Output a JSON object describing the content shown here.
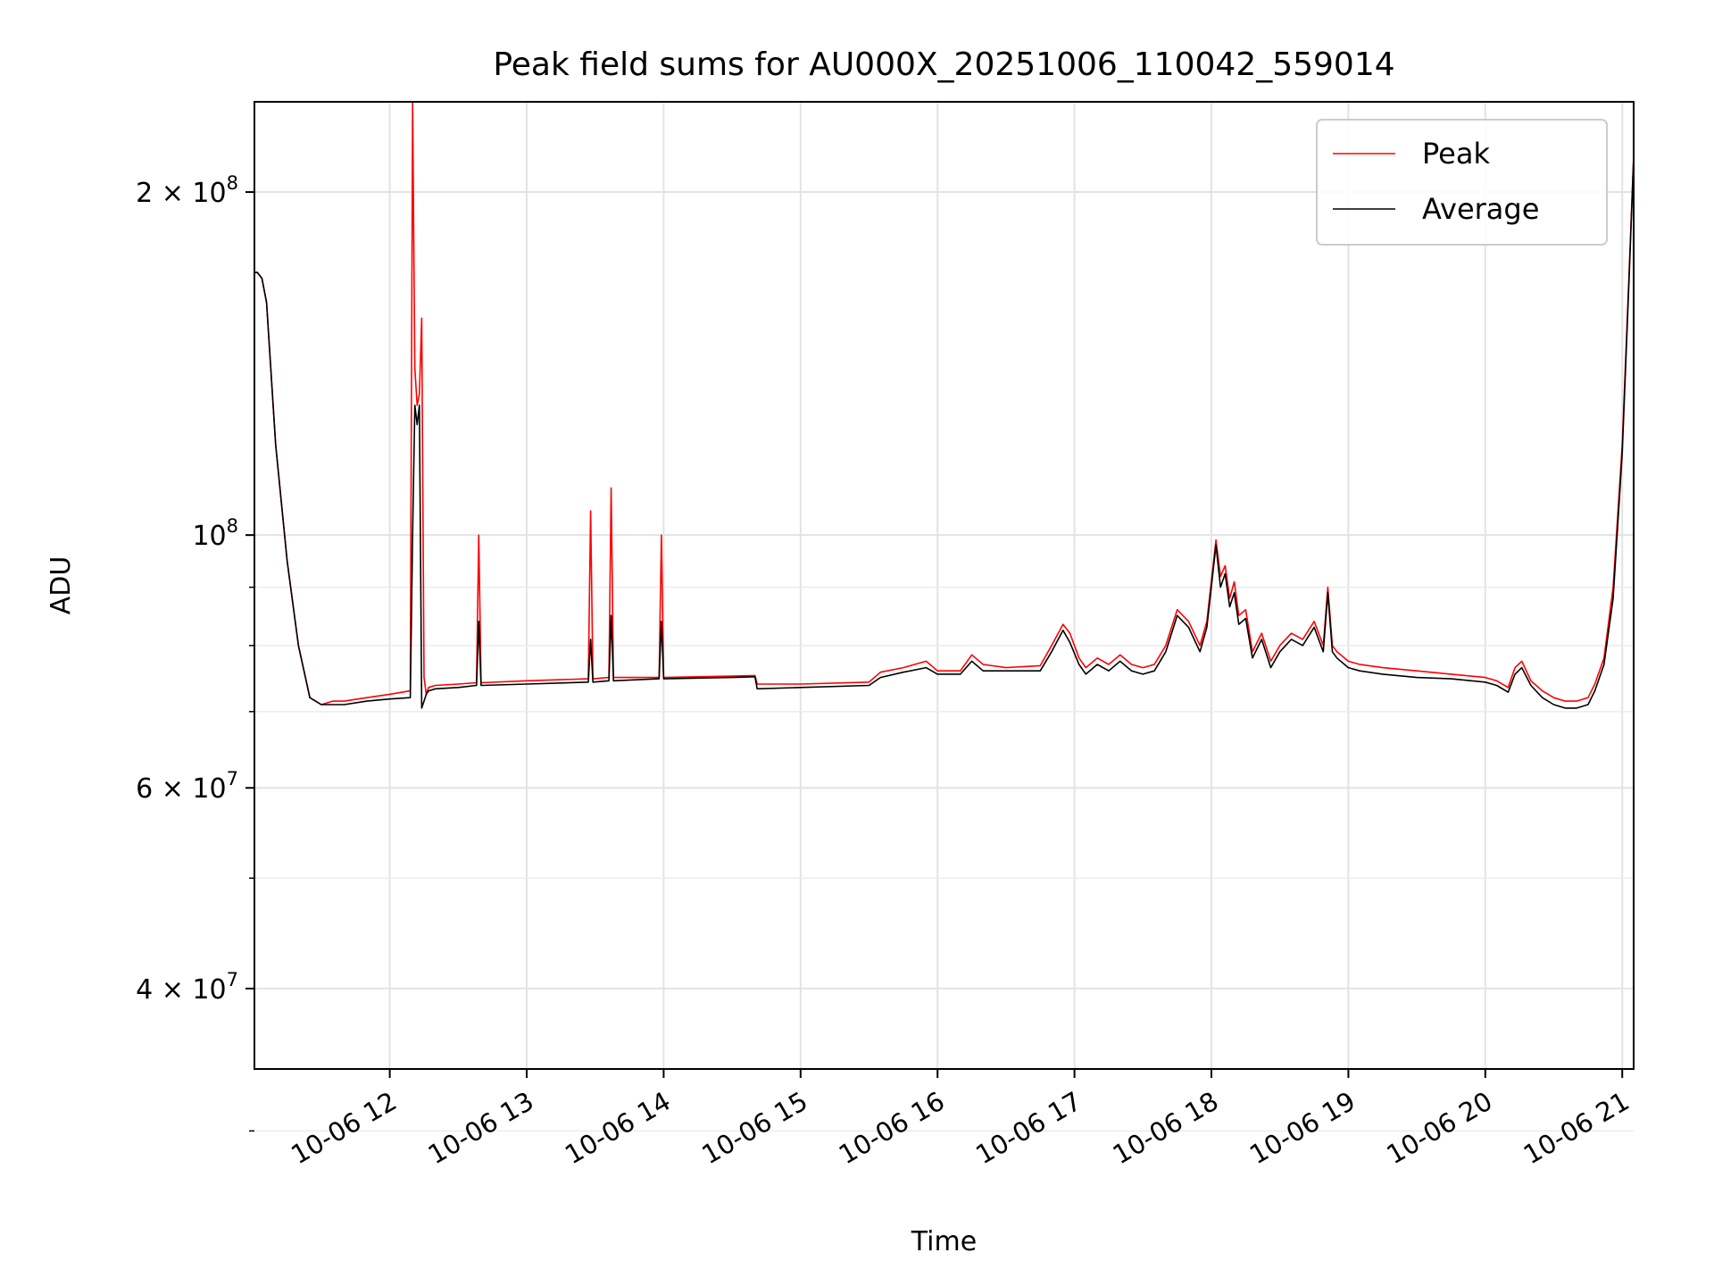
{
  "chart_data": {
    "type": "line",
    "title": "Peak field sums for AU000X_20251006_110042_559014",
    "xlabel": "Time",
    "ylabel": "ADU",
    "y_scale": "log",
    "xlim": [
      "2025-10-06 11:00:42",
      "2025-10-06 21:05:00"
    ],
    "ylim": [
      34000000,
      240000000
    ],
    "grid": true,
    "legend_position": "top-right",
    "x_ticks": [
      {
        "value": "2025-10-06 12:00",
        "label": "10-06 12"
      },
      {
        "value": "2025-10-06 13:00",
        "label": "10-06 13"
      },
      {
        "value": "2025-10-06 14:00",
        "label": "10-06 14"
      },
      {
        "value": "2025-10-06 15:00",
        "label": "10-06 15"
      },
      {
        "value": "2025-10-06 16:00",
        "label": "10-06 16"
      },
      {
        "value": "2025-10-06 17:00",
        "label": "10-06 17"
      },
      {
        "value": "2025-10-06 18:00",
        "label": "10-06 18"
      },
      {
        "value": "2025-10-06 19:00",
        "label": "10-06 19"
      },
      {
        "value": "2025-10-06 20:00",
        "label": "10-06 20"
      },
      {
        "value": "2025-10-06 21:00",
        "label": "10-06 21"
      }
    ],
    "y_ticks": [
      {
        "value": 40000000,
        "mantissa": "4",
        "base": "10",
        "exp": "7"
      },
      {
        "value": 60000000,
        "mantissa": "6",
        "base": "10",
        "exp": "7"
      },
      {
        "value": 100000000,
        "mantissa": "",
        "base": "10",
        "exp": "8"
      },
      {
        "value": 200000000,
        "mantissa": "2",
        "base": "10",
        "exp": "8"
      }
    ],
    "y_minor_ticks": [
      30000000,
      50000000,
      70000000,
      80000000,
      90000000
    ],
    "series": [
      {
        "name": "Peak",
        "color": "#ff0000",
        "x": [
          "2025-10-06 11:00:42",
          "2025-10-06 11:02",
          "2025-10-06 11:04",
          "2025-10-06 11:06",
          "2025-10-06 11:10",
          "2025-10-06 11:15",
          "2025-10-06 11:20",
          "2025-10-06 11:25",
          "2025-10-06 11:30",
          "2025-10-06 11:35",
          "2025-10-06 11:40",
          "2025-10-06 11:50",
          "2025-10-06 12:00",
          "2025-10-06 12:09",
          "2025-10-06 12:10",
          "2025-10-06 12:11",
          "2025-10-06 12:12",
          "2025-10-06 12:13",
          "2025-10-06 12:14",
          "2025-10-06 12:15",
          "2025-10-06 12:16",
          "2025-10-06 12:17",
          "2025-10-06 12:20",
          "2025-10-06 12:30",
          "2025-10-06 12:38",
          "2025-10-06 12:39",
          "2025-10-06 12:40",
          "2025-10-06 13:00",
          "2025-10-06 13:27",
          "2025-10-06 13:28",
          "2025-10-06 13:29",
          "2025-10-06 13:36",
          "2025-10-06 13:37",
          "2025-10-06 13:38",
          "2025-10-06 13:58",
          "2025-10-06 13:59",
          "2025-10-06 14:00",
          "2025-10-06 14:30",
          "2025-10-06 14:40",
          "2025-10-06 14:41",
          "2025-10-06 15:00",
          "2025-10-06 15:30",
          "2025-10-06 15:35",
          "2025-10-06 15:45",
          "2025-10-06 15:55",
          "2025-10-06 16:00",
          "2025-10-06 16:10",
          "2025-10-06 16:15",
          "2025-10-06 16:20",
          "2025-10-06 16:30",
          "2025-10-06 16:45",
          "2025-10-06 16:50",
          "2025-10-06 16:55",
          "2025-10-06 16:58",
          "2025-10-06 17:02",
          "2025-10-06 17:05",
          "2025-10-06 17:10",
          "2025-10-06 17:15",
          "2025-10-06 17:20",
          "2025-10-06 17:25",
          "2025-10-06 17:30",
          "2025-10-06 17:35",
          "2025-10-06 17:40",
          "2025-10-06 17:45",
          "2025-10-06 17:50",
          "2025-10-06 17:55",
          "2025-10-06 17:58",
          "2025-10-06 18:02",
          "2025-10-06 18:04",
          "2025-10-06 18:06",
          "2025-10-06 18:08",
          "2025-10-06 18:10",
          "2025-10-06 18:12",
          "2025-10-06 18:15",
          "2025-10-06 18:18",
          "2025-10-06 18:22",
          "2025-10-06 18:26",
          "2025-10-06 18:30",
          "2025-10-06 18:35",
          "2025-10-06 18:40",
          "2025-10-06 18:45",
          "2025-10-06 18:49",
          "2025-10-06 18:51",
          "2025-10-06 18:53",
          "2025-10-06 18:55",
          "2025-10-06 19:00",
          "2025-10-06 19:05",
          "2025-10-06 19:15",
          "2025-10-06 19:30",
          "2025-10-06 19:45",
          "2025-10-06 20:00",
          "2025-10-06 20:05",
          "2025-10-06 20:10",
          "2025-10-06 20:13",
          "2025-10-06 20:16",
          "2025-10-06 20:20",
          "2025-10-06 20:25",
          "2025-10-06 20:30",
          "2025-10-06 20:35",
          "2025-10-06 20:40",
          "2025-10-06 20:45",
          "2025-10-06 20:48",
          "2025-10-06 20:52",
          "2025-10-06 20:56",
          "2025-10-06 21:00",
          "2025-10-06 21:03",
          "2025-10-06 21:05"
        ],
        "values": [
          170000000,
          170000000,
          168000000,
          160000000,
          120000000,
          95000000,
          80000000,
          72000000,
          71000000,
          71500000,
          71500000,
          72000000,
          72500000,
          73000000,
          240000000,
          140000000,
          130000000,
          133000000,
          155000000,
          75000000,
          72500000,
          73500000,
          73800000,
          74000000,
          74200000,
          100000000,
          74200000,
          74500000,
          74800000,
          105000000,
          74800000,
          75000000,
          110000000,
          75000000,
          75000000,
          100000000,
          75000000,
          75200000,
          75300000,
          74000000,
          74000000,
          74300000,
          75800000,
          76500000,
          77500000,
          76000000,
          76000000,
          78500000,
          77000000,
          76500000,
          76800000,
          80000000,
          83500000,
          82000000,
          78000000,
          76500000,
          78000000,
          77000000,
          78500000,
          77000000,
          76500000,
          77000000,
          80000000,
          86000000,
          84000000,
          80000000,
          84000000,
          99000000,
          92000000,
          94000000,
          88000000,
          91000000,
          85000000,
          86000000,
          79000000,
          82000000,
          77500000,
          80000000,
          82000000,
          81000000,
          84000000,
          80000000,
          90000000,
          80000000,
          79000000,
          77500000,
          77000000,
          76500000,
          76000000,
          75500000,
          75000000,
          74500000,
          73500000,
          76500000,
          77500000,
          74500000,
          73000000,
          72000000,
          71500000,
          71500000,
          72000000,
          74000000,
          78000000,
          90000000,
          120000000,
          170000000,
          215000000
        ]
      },
      {
        "name": "Average",
        "color": "#000000",
        "x": [
          "2025-10-06 11:00:42",
          "2025-10-06 11:02",
          "2025-10-06 11:04",
          "2025-10-06 11:06",
          "2025-10-06 11:10",
          "2025-10-06 11:15",
          "2025-10-06 11:20",
          "2025-10-06 11:25",
          "2025-10-06 11:30",
          "2025-10-06 11:35",
          "2025-10-06 11:40",
          "2025-10-06 11:50",
          "2025-10-06 12:00",
          "2025-10-06 12:09",
          "2025-10-06 12:10",
          "2025-10-06 12:11",
          "2025-10-06 12:12",
          "2025-10-06 12:13",
          "2025-10-06 12:14",
          "2025-10-06 12:15",
          "2025-10-06 12:16",
          "2025-10-06 12:17",
          "2025-10-06 12:20",
          "2025-10-06 12:30",
          "2025-10-06 12:38",
          "2025-10-06 12:39",
          "2025-10-06 12:40",
          "2025-10-06 13:00",
          "2025-10-06 13:27",
          "2025-10-06 13:28",
          "2025-10-06 13:29",
          "2025-10-06 13:36",
          "2025-10-06 13:37",
          "2025-10-06 13:38",
          "2025-10-06 13:58",
          "2025-10-06 13:59",
          "2025-10-06 14:00",
          "2025-10-06 14:30",
          "2025-10-06 14:40",
          "2025-10-06 14:41",
          "2025-10-06 15:00",
          "2025-10-06 15:30",
          "2025-10-06 15:35",
          "2025-10-06 15:45",
          "2025-10-06 15:55",
          "2025-10-06 16:00",
          "2025-10-06 16:10",
          "2025-10-06 16:15",
          "2025-10-06 16:20",
          "2025-10-06 16:30",
          "2025-10-06 16:45",
          "2025-10-06 16:50",
          "2025-10-06 16:55",
          "2025-10-06 16:58",
          "2025-10-06 17:02",
          "2025-10-06 17:05",
          "2025-10-06 17:10",
          "2025-10-06 17:15",
          "2025-10-06 17:20",
          "2025-10-06 17:25",
          "2025-10-06 17:30",
          "2025-10-06 17:35",
          "2025-10-06 17:40",
          "2025-10-06 17:45",
          "2025-10-06 17:50",
          "2025-10-06 17:55",
          "2025-10-06 17:58",
          "2025-10-06 18:02",
          "2025-10-06 18:04",
          "2025-10-06 18:06",
          "2025-10-06 18:08",
          "2025-10-06 18:10",
          "2025-10-06 18:12",
          "2025-10-06 18:15",
          "2025-10-06 18:18",
          "2025-10-06 18:22",
          "2025-10-06 18:26",
          "2025-10-06 18:30",
          "2025-10-06 18:35",
          "2025-10-06 18:40",
          "2025-10-06 18:45",
          "2025-10-06 18:49",
          "2025-10-06 18:51",
          "2025-10-06 18:53",
          "2025-10-06 18:55",
          "2025-10-06 19:00",
          "2025-10-06 19:05",
          "2025-10-06 19:15",
          "2025-10-06 19:30",
          "2025-10-06 19:45",
          "2025-10-06 20:00",
          "2025-10-06 20:05",
          "2025-10-06 20:10",
          "2025-10-06 20:13",
          "2025-10-06 20:16",
          "2025-10-06 20:20",
          "2025-10-06 20:25",
          "2025-10-06 20:30",
          "2025-10-06 20:35",
          "2025-10-06 20:40",
          "2025-10-06 20:45",
          "2025-10-06 20:48",
          "2025-10-06 20:52",
          "2025-10-06 20:56",
          "2025-10-06 21:00",
          "2025-10-06 21:03",
          "2025-10-06 21:05"
        ],
        "values": [
          170000000,
          170000000,
          168000000,
          160000000,
          120000000,
          95000000,
          80000000,
          72000000,
          71000000,
          71000000,
          71000000,
          71500000,
          71800000,
          72000000,
          100000000,
          130000000,
          125000000,
          130000000,
          70500000,
          71500000,
          72500000,
          73000000,
          73300000,
          73500000,
          73800000,
          84000000,
          73800000,
          74000000,
          74300000,
          81000000,
          74300000,
          74500000,
          85000000,
          74500000,
          74800000,
          84000000,
          74800000,
          75000000,
          75100000,
          73300000,
          73500000,
          73800000,
          75000000,
          75800000,
          76500000,
          75500000,
          75500000,
          77500000,
          76000000,
          76000000,
          76000000,
          79000000,
          82500000,
          80500000,
          77000000,
          75500000,
          77000000,
          76000000,
          77500000,
          76000000,
          75500000,
          76000000,
          79000000,
          85000000,
          83000000,
          79000000,
          83000000,
          98000000,
          90000000,
          92500000,
          86500000,
          89000000,
          83500000,
          84500000,
          78000000,
          81000000,
          76500000,
          79000000,
          81000000,
          80000000,
          83000000,
          79000000,
          89000000,
          79000000,
          78000000,
          76500000,
          76000000,
          75500000,
          75000000,
          74800000,
          74300000,
          73800000,
          72800000,
          75500000,
          76500000,
          73800000,
          72000000,
          71000000,
          70500000,
          70500000,
          71000000,
          73000000,
          77000000,
          88000000,
          118000000,
          168000000,
          215000000
        ]
      }
    ]
  }
}
